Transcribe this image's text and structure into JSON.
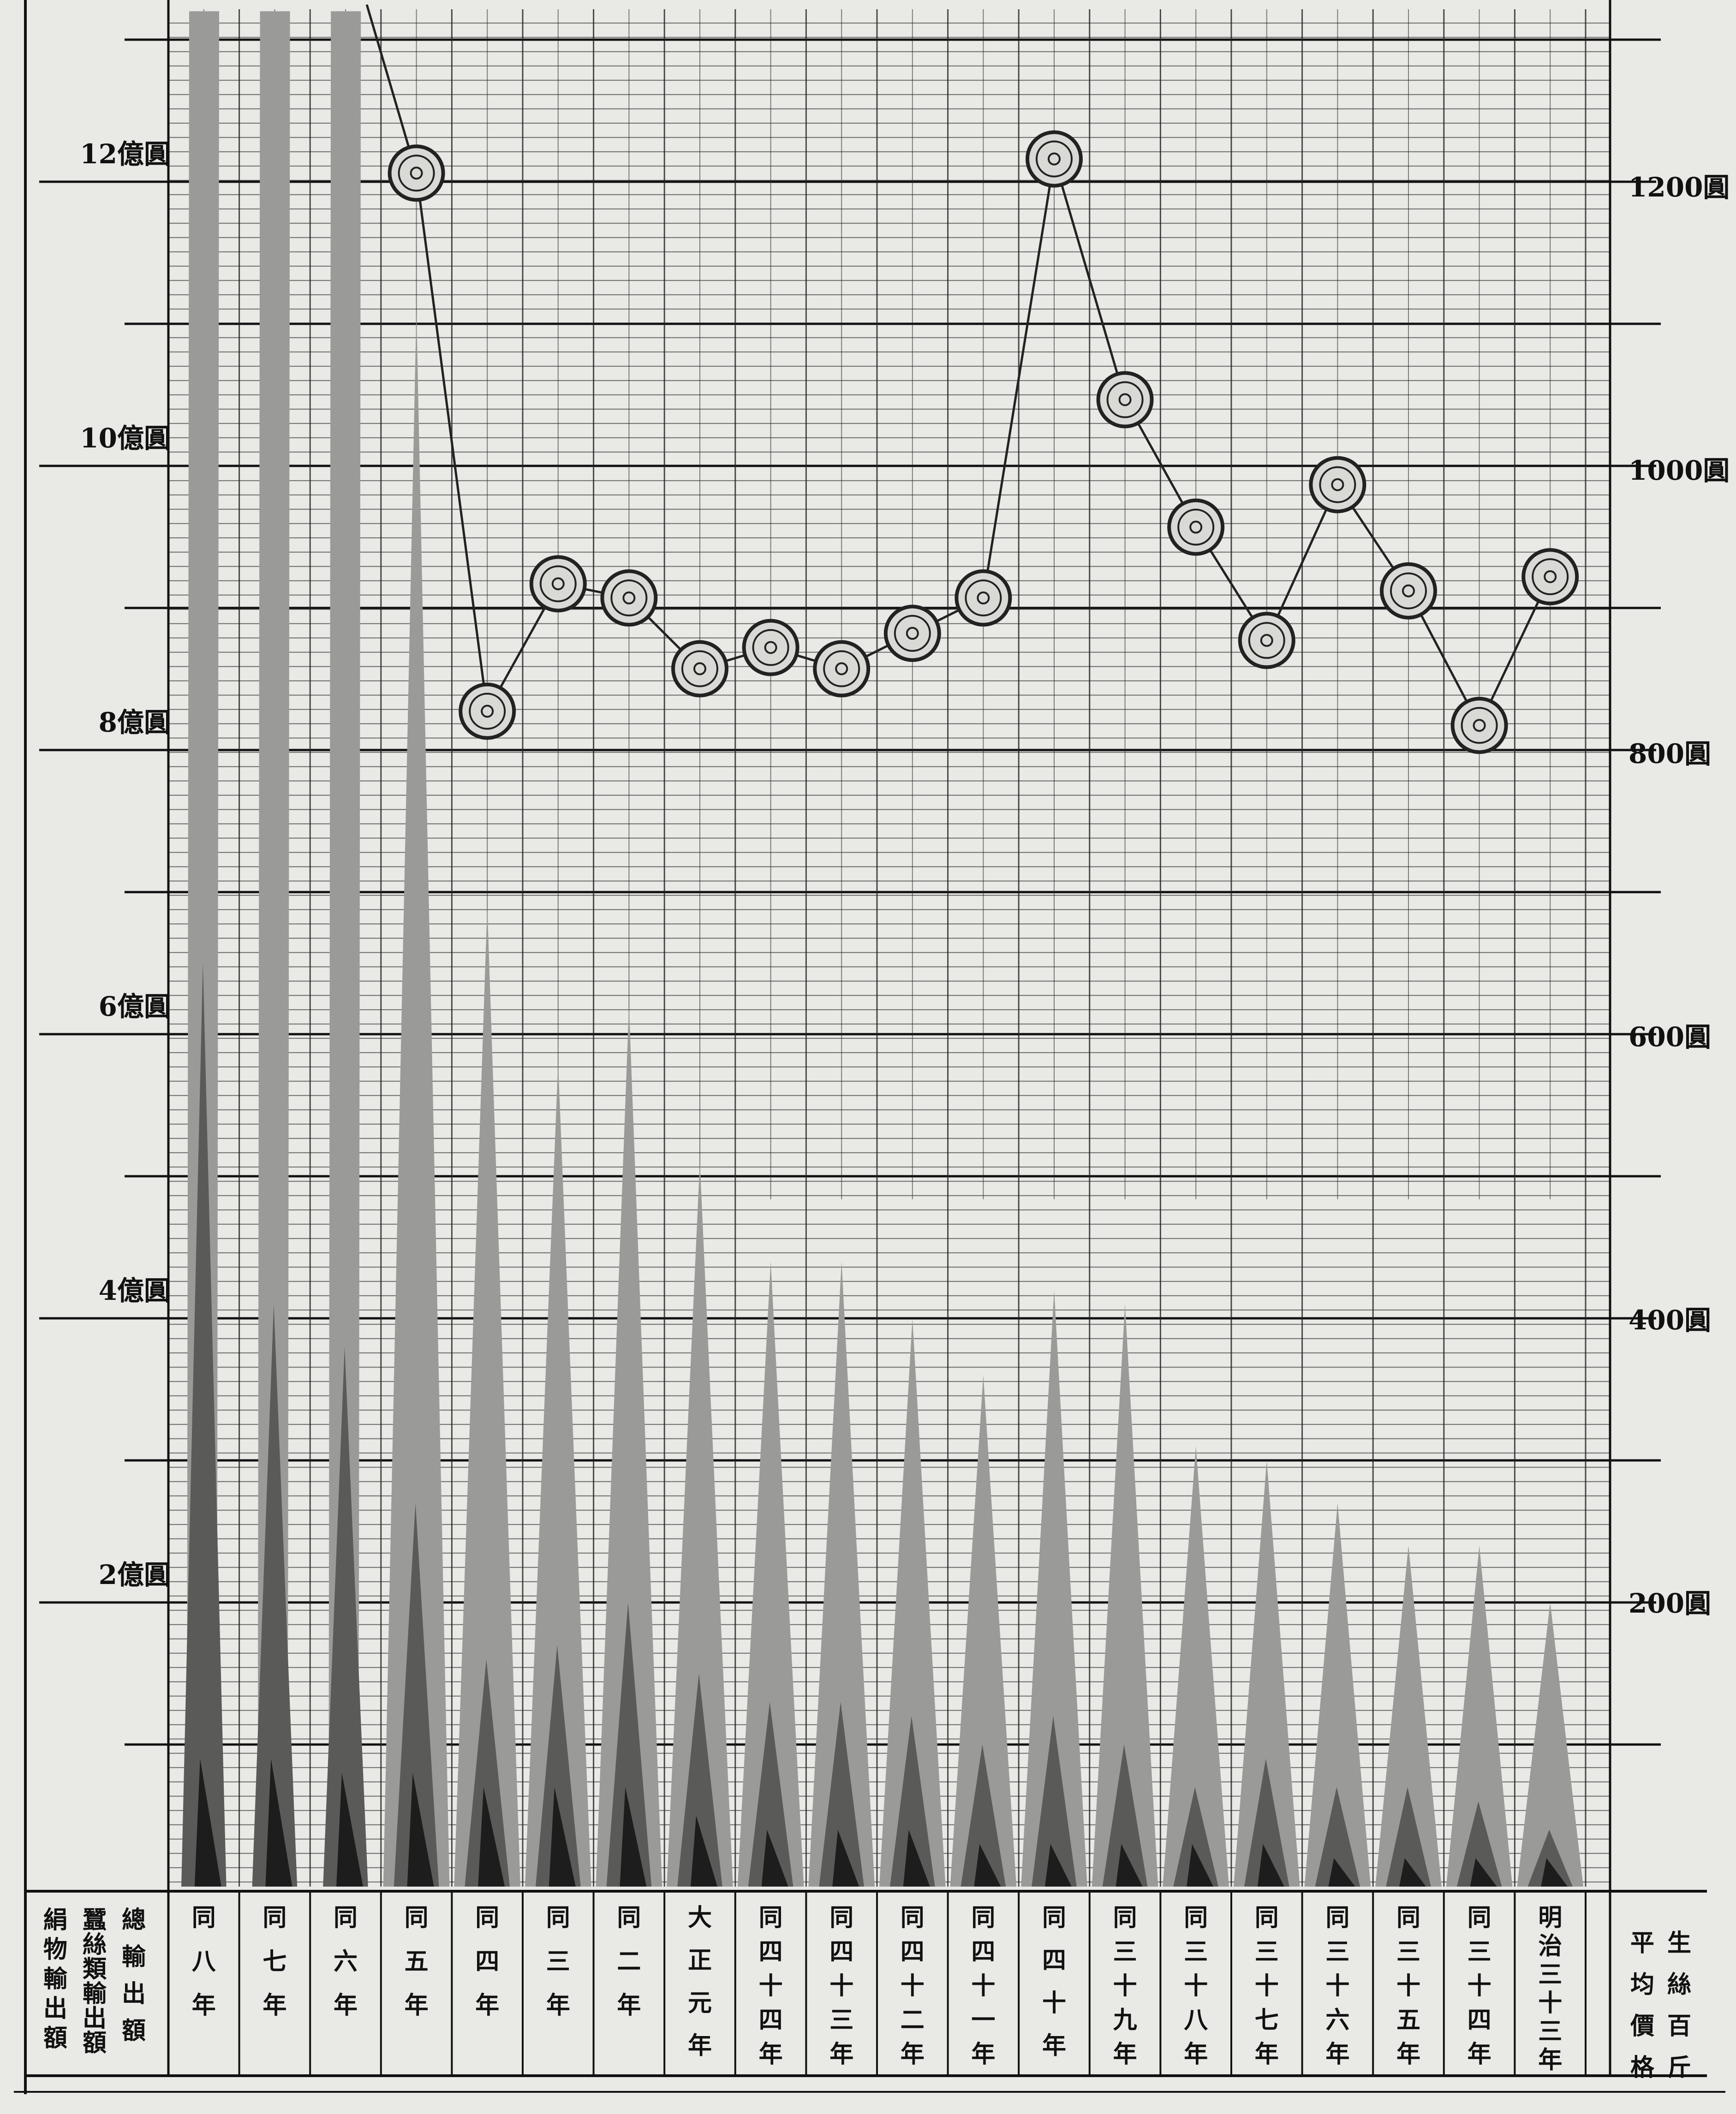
{
  "chart_data": {
    "type": "bar",
    "description_order": "columns listed left to right as in image",
    "categories": [
      "同八年",
      "同七年",
      "同六年",
      "同五年",
      "同四年",
      "同三年",
      "同二年",
      "大正元年",
      "同四十四年",
      "同四十三年",
      "同四十二年",
      "同四十一年",
      "同四十年",
      "同三十九年",
      "同三十八年",
      "同三十七年",
      "同三十六年",
      "同三十五年",
      "同三十四年",
      "明治三十三年"
    ],
    "category_labels": [
      "同八年",
      "同七年",
      "同六年",
      "同五年",
      "同四年",
      "同三年",
      "同二年",
      "大正元年",
      "同四十四年",
      "同四十三年",
      "同四十二年",
      "同四十一年",
      "同四十年",
      "同三十九年",
      "同三十八年",
      "同三十七年",
      "同三十六年",
      "同三十五年",
      "同三十四年",
      "明治三十三年"
    ],
    "series": [
      {
        "name": "総輸出額",
        "unit": "億圓",
        "values": [
          13.2,
          13.2,
          13.2,
          11.1,
          6.9,
          5.8,
          6.2,
          5.1,
          4.4,
          4.4,
          4.0,
          3.6,
          4.2,
          4.1,
          3.1,
          3.0,
          2.7,
          2.4,
          2.4,
          2.0
        ]
      },
      {
        "name": "蠶絲類輸出額",
        "unit": "億圓",
        "values": [
          6.5,
          4.1,
          3.8,
          2.7,
          1.6,
          1.7,
          2.0,
          1.5,
          1.3,
          1.3,
          1.2,
          1.0,
          1.2,
          1.0,
          0.7,
          0.9,
          0.7,
          0.7,
          0.6,
          0.4
        ]
      },
      {
        "name": "絹物輸出額",
        "unit": "億圓",
        "values": [
          0.9,
          0.9,
          0.8,
          0.8,
          0.7,
          0.7,
          0.7,
          0.5,
          0.4,
          0.4,
          0.4,
          0.3,
          0.3,
          0.3,
          0.3,
          0.3,
          0.2,
          0.2,
          0.2,
          0.2
        ]
      },
      {
        "name": "生絲百斤平均價格",
        "unit": "圓",
        "values": [
          null,
          null,
          null,
          1210,
          830,
          920,
          910,
          860,
          875,
          860,
          885,
          910,
          1220,
          1050,
          960,
          880,
          990,
          915,
          820,
          925
        ]
      }
    ],
    "y_left": {
      "ticks": [
        "2億圓",
        "4億圓",
        "6億圓",
        "8億圓",
        "10億圓",
        "12億圓"
      ],
      "ylim": [
        0,
        13.2
      ]
    },
    "y_right": {
      "ticks": [
        "200圓",
        "400圓",
        "600圓",
        "800圓",
        "1000圓",
        "1200圓"
      ],
      "ylim": [
        0,
        1310
      ]
    },
    "legend": {
      "lines": [
        "總輸出額",
        "蠶絲類輸出額",
        "絹物輸出額"
      ],
      "right_lines": [
        "生絲百斤",
        "平均價格"
      ]
    },
    "colors": {
      "total": "#9a9a98",
      "silk": "#5a5a58",
      "silkgoods": "#1d1d1d",
      "paper": "#e9e9e6",
      "grid": "#1c1c1c"
    },
    "grid": true
  }
}
